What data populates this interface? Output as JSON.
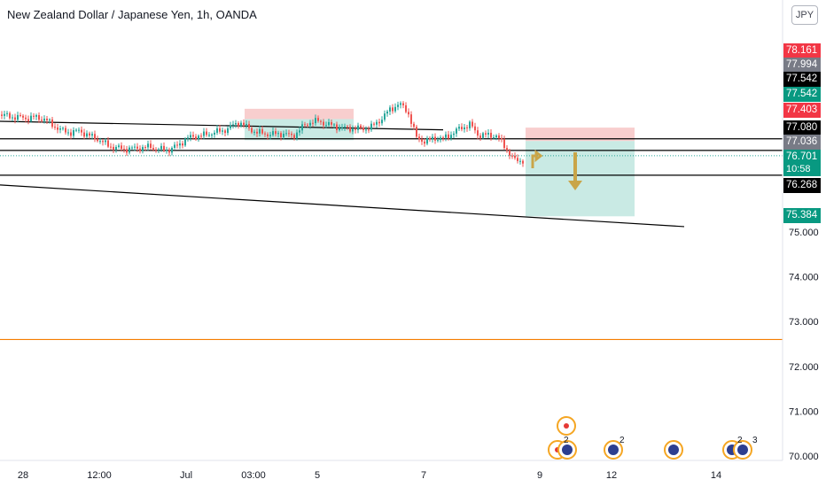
{
  "header": {
    "title": "New Zealand Dollar / Japanese Yen, 1h, OANDA",
    "currency_badge": "JPY"
  },
  "colors": {
    "up": "#26a69a",
    "down": "#ef5350",
    "stop_zone": "#f7c5c5",
    "target_zone": "#bfe6df",
    "orange_line": "#f57c00",
    "arrow": "#c9a548",
    "current_price": "#26a69a"
  },
  "price_tags": [
    {
      "value": "78.161",
      "bg": "#f23645",
      "fg": "#ffffff"
    },
    {
      "value": "77.994",
      "bg": "#787b86",
      "fg": "#ffffff"
    },
    {
      "value": "77.542",
      "bg": "#000000",
      "fg": "#ffffff"
    },
    {
      "value": "77.542",
      "bg": "#089981",
      "fg": "#ffffff"
    },
    {
      "value": "77.403",
      "bg": "#f23645",
      "fg": "#ffffff"
    },
    {
      "value": "77.080",
      "bg": "#000000",
      "fg": "#ffffff"
    },
    {
      "value": "77.036",
      "bg": "#787b86",
      "fg": "#ffffff"
    },
    {
      "value": "76.701",
      "bg": "#089981",
      "fg": "#ffffff",
      "sub": "10:58"
    },
    {
      "value": "76.268",
      "bg": "#000000",
      "fg": "#ffffff"
    },
    {
      "value": "75.384",
      "bg": "#089981",
      "fg": "#ffffff"
    }
  ],
  "event_badges": [
    {
      "count": "2"
    },
    {
      "count": "2"
    },
    {
      "count": "2"
    },
    {
      "count": "3"
    }
  ],
  "chart_data": {
    "type": "candlestick",
    "title": "New Zealand Dollar / Japanese Yen, 1h, OANDA",
    "ylim": [
      69.9,
      80.0
    ],
    "y_ticks": [
      "75.000",
      "74.000",
      "73.000",
      "72.000",
      "71.000",
      "70.000"
    ],
    "x_ticks": [
      "28",
      "12:00",
      "Jul",
      "03:00",
      "5",
      "7",
      "9",
      "12",
      "14"
    ],
    "horizontal_levels": [
      77.08,
      76.82,
      76.268
    ],
    "orange_level": 72.6,
    "current_price": 76.701,
    "trend_lines": [
      {
        "from": {
          "t": 0,
          "p": 77.47
        },
        "to": {
          "t": 500,
          "p": 77.28
        }
      },
      {
        "from": {
          "t": 0,
          "p": 76.05
        },
        "to": {
          "t": 772,
          "p": 75.12
        }
      }
    ],
    "zones": [
      {
        "kind": "stop",
        "t_from": 276,
        "t_to": 399,
        "p_from": 77.75,
        "p_to": 77.52
      },
      {
        "kind": "target",
        "t_from": 276,
        "t_to": 399,
        "p_from": 77.52,
        "p_to": 77.05
      },
      {
        "kind": "stop",
        "t_from": 593,
        "t_to": 716,
        "p_from": 77.33,
        "p_to": 77.03
      },
      {
        "kind": "target",
        "t_from": 593,
        "t_to": 716,
        "p_from": 77.03,
        "p_to": 75.35
      }
    ],
    "series": [
      {
        "name": "close",
        "points": [
          [
            0,
            77.62
          ],
          [
            10,
            77.58
          ],
          [
            20,
            77.56
          ],
          [
            30,
            77.54
          ],
          [
            40,
            77.56
          ],
          [
            50,
            77.52
          ],
          [
            60,
            77.38
          ],
          [
            70,
            77.26
          ],
          [
            80,
            77.22
          ],
          [
            90,
            77.26
          ],
          [
            100,
            77.15
          ],
          [
            110,
            77.08
          ],
          [
            120,
            76.95
          ],
          [
            130,
            76.88
          ],
          [
            140,
            76.85
          ],
          [
            150,
            76.86
          ],
          [
            160,
            76.88
          ],
          [
            170,
            76.9
          ],
          [
            180,
            76.84
          ],
          [
            190,
            76.83
          ],
          [
            200,
            76.92
          ],
          [
            210,
            77.08
          ],
          [
            220,
            77.14
          ],
          [
            230,
            77.16
          ],
          [
            240,
            77.22
          ],
          [
            250,
            77.25
          ],
          [
            260,
            77.34
          ],
          [
            270,
            77.46
          ],
          [
            280,
            77.32
          ],
          [
            290,
            77.22
          ],
          [
            300,
            77.19
          ],
          [
            310,
            77.18
          ],
          [
            320,
            77.2
          ],
          [
            330,
            77.13
          ],
          [
            340,
            77.32
          ],
          [
            350,
            77.46
          ],
          [
            360,
            77.47
          ],
          [
            370,
            77.4
          ],
          [
            380,
            77.35
          ],
          [
            390,
            77.31
          ],
          [
            400,
            77.31
          ],
          [
            410,
            77.3
          ],
          [
            420,
            77.35
          ],
          [
            430,
            77.52
          ],
          [
            440,
            77.73
          ],
          [
            450,
            77.86
          ],
          [
            460,
            77.7
          ],
          [
            470,
            77.1
          ],
          [
            480,
            77.02
          ],
          [
            490,
            77.1
          ],
          [
            500,
            77.08
          ],
          [
            510,
            77.2
          ],
          [
            520,
            77.32
          ],
          [
            530,
            77.4
          ],
          [
            540,
            77.16
          ],
          [
            550,
            77.16
          ],
          [
            560,
            77.15
          ],
          [
            570,
            76.9
          ],
          [
            580,
            76.6
          ],
          [
            590,
            76.6
          ]
        ]
      }
    ]
  }
}
